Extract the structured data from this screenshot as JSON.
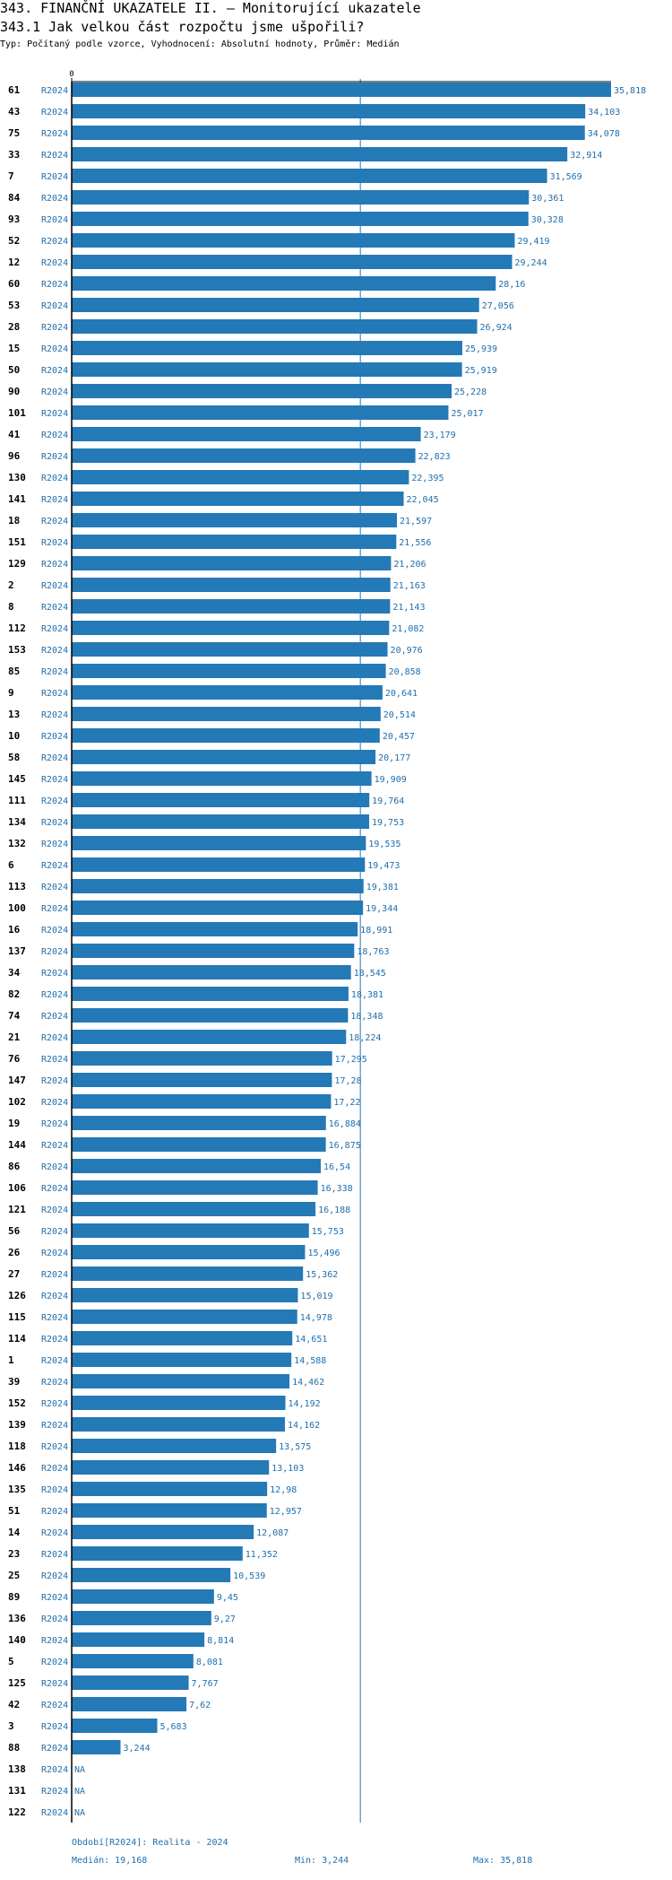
{
  "header": {
    "title1": "343. FINANČNÍ UKAZATELE II. – Monitorující ukazatele",
    "title2": "343.1 Jak velkou část rozpočtu jsme ušpořili?",
    "subtitle": "Typ: Počítaný podle vzorce, Vyhodnocení: Absolutní hodnoty, Průměr: Medián"
  },
  "colors": {
    "bar": "#2479b7",
    "text_accent": "#1f6fad",
    "median_line": "#2479b7"
  },
  "chart_data": {
    "type": "bar",
    "orientation": "horizontal",
    "title": "343.1 Jak velkou část rozpočtu jsme ušpořili?",
    "xlim": [
      0,
      35818
    ],
    "x_tick_label": "0",
    "median": 19168,
    "rows": [
      {
        "id": "61",
        "period": "R2024",
        "value": 35818,
        "label": "35,818"
      },
      {
        "id": "43",
        "period": "R2024",
        "value": 34103,
        "label": "34,103"
      },
      {
        "id": "75",
        "period": "R2024",
        "value": 34078,
        "label": "34,078"
      },
      {
        "id": "33",
        "period": "R2024",
        "value": 32914,
        "label": "32,914"
      },
      {
        "id": "7",
        "period": "R2024",
        "value": 31569,
        "label": "31,569"
      },
      {
        "id": "84",
        "period": "R2024",
        "value": 30361,
        "label": "30,361"
      },
      {
        "id": "93",
        "period": "R2024",
        "value": 30328,
        "label": "30,328"
      },
      {
        "id": "52",
        "period": "R2024",
        "value": 29419,
        "label": "29,419"
      },
      {
        "id": "12",
        "period": "R2024",
        "value": 29244,
        "label": "29,244"
      },
      {
        "id": "60",
        "period": "R2024",
        "value": 28160,
        "label": "28,16"
      },
      {
        "id": "53",
        "period": "R2024",
        "value": 27056,
        "label": "27,056"
      },
      {
        "id": "28",
        "period": "R2024",
        "value": 26924,
        "label": "26,924"
      },
      {
        "id": "15",
        "period": "R2024",
        "value": 25939,
        "label": "25,939"
      },
      {
        "id": "50",
        "period": "R2024",
        "value": 25919,
        "label": "25,919"
      },
      {
        "id": "90",
        "period": "R2024",
        "value": 25228,
        "label": "25,228"
      },
      {
        "id": "101",
        "period": "R2024",
        "value": 25017,
        "label": "25,017"
      },
      {
        "id": "41",
        "period": "R2024",
        "value": 23179,
        "label": "23,179"
      },
      {
        "id": "96",
        "period": "R2024",
        "value": 22823,
        "label": "22,823"
      },
      {
        "id": "130",
        "period": "R2024",
        "value": 22395,
        "label": "22,395"
      },
      {
        "id": "141",
        "period": "R2024",
        "value": 22045,
        "label": "22,045"
      },
      {
        "id": "18",
        "period": "R2024",
        "value": 21597,
        "label": "21,597"
      },
      {
        "id": "151",
        "period": "R2024",
        "value": 21556,
        "label": "21,556"
      },
      {
        "id": "129",
        "period": "R2024",
        "value": 21206,
        "label": "21,206"
      },
      {
        "id": "2",
        "period": "R2024",
        "value": 21163,
        "label": "21,163"
      },
      {
        "id": "8",
        "period": "R2024",
        "value": 21143,
        "label": "21,143"
      },
      {
        "id": "112",
        "period": "R2024",
        "value": 21082,
        "label": "21,082"
      },
      {
        "id": "153",
        "period": "R2024",
        "value": 20976,
        "label": "20,976"
      },
      {
        "id": "85",
        "period": "R2024",
        "value": 20858,
        "label": "20,858"
      },
      {
        "id": "9",
        "period": "R2024",
        "value": 20641,
        "label": "20,641"
      },
      {
        "id": "13",
        "period": "R2024",
        "value": 20514,
        "label": "20,514"
      },
      {
        "id": "10",
        "period": "R2024",
        "value": 20457,
        "label": "20,457"
      },
      {
        "id": "58",
        "period": "R2024",
        "value": 20177,
        "label": "20,177"
      },
      {
        "id": "145",
        "period": "R2024",
        "value": 19909,
        "label": "19,909"
      },
      {
        "id": "111",
        "period": "R2024",
        "value": 19764,
        "label": "19,764"
      },
      {
        "id": "134",
        "period": "R2024",
        "value": 19753,
        "label": "19,753"
      },
      {
        "id": "132",
        "period": "R2024",
        "value": 19535,
        "label": "19,535"
      },
      {
        "id": "6",
        "period": "R2024",
        "value": 19473,
        "label": "19,473"
      },
      {
        "id": "113",
        "period": "R2024",
        "value": 19381,
        "label": "19,381"
      },
      {
        "id": "100",
        "period": "R2024",
        "value": 19344,
        "label": "19,344"
      },
      {
        "id": "16",
        "period": "R2024",
        "value": 18991,
        "label": "18,991"
      },
      {
        "id": "137",
        "period": "R2024",
        "value": 18763,
        "label": "18,763"
      },
      {
        "id": "34",
        "period": "R2024",
        "value": 18545,
        "label": "18,545"
      },
      {
        "id": "82",
        "period": "R2024",
        "value": 18381,
        "label": "18,381"
      },
      {
        "id": "74",
        "period": "R2024",
        "value": 18348,
        "label": "18,348"
      },
      {
        "id": "21",
        "period": "R2024",
        "value": 18224,
        "label": "18,224"
      },
      {
        "id": "76",
        "period": "R2024",
        "value": 17295,
        "label": "17,295"
      },
      {
        "id": "147",
        "period": "R2024",
        "value": 17280,
        "label": "17,28"
      },
      {
        "id": "102",
        "period": "R2024",
        "value": 17220,
        "label": "17,22"
      },
      {
        "id": "19",
        "period": "R2024",
        "value": 16884,
        "label": "16,884"
      },
      {
        "id": "144",
        "period": "R2024",
        "value": 16875,
        "label": "16,875"
      },
      {
        "id": "86",
        "period": "R2024",
        "value": 16540,
        "label": "16,54"
      },
      {
        "id": "106",
        "period": "R2024",
        "value": 16338,
        "label": "16,338"
      },
      {
        "id": "121",
        "period": "R2024",
        "value": 16188,
        "label": "16,188"
      },
      {
        "id": "56",
        "period": "R2024",
        "value": 15753,
        "label": "15,753"
      },
      {
        "id": "26",
        "period": "R2024",
        "value": 15496,
        "label": "15,496"
      },
      {
        "id": "27",
        "period": "R2024",
        "value": 15362,
        "label": "15,362"
      },
      {
        "id": "126",
        "period": "R2024",
        "value": 15019,
        "label": "15,019"
      },
      {
        "id": "115",
        "period": "R2024",
        "value": 14978,
        "label": "14,978"
      },
      {
        "id": "114",
        "period": "R2024",
        "value": 14651,
        "label": "14,651"
      },
      {
        "id": "1",
        "period": "R2024",
        "value": 14588,
        "label": "14,588"
      },
      {
        "id": "39",
        "period": "R2024",
        "value": 14462,
        "label": "14,462"
      },
      {
        "id": "152",
        "period": "R2024",
        "value": 14192,
        "label": "14,192"
      },
      {
        "id": "139",
        "period": "R2024",
        "value": 14162,
        "label": "14,162"
      },
      {
        "id": "118",
        "period": "R2024",
        "value": 13575,
        "label": "13,575"
      },
      {
        "id": "146",
        "period": "R2024",
        "value": 13103,
        "label": "13,103"
      },
      {
        "id": "135",
        "period": "R2024",
        "value": 12980,
        "label": "12,98"
      },
      {
        "id": "51",
        "period": "R2024",
        "value": 12957,
        "label": "12,957"
      },
      {
        "id": "14",
        "period": "R2024",
        "value": 12087,
        "label": "12,087"
      },
      {
        "id": "23",
        "period": "R2024",
        "value": 11352,
        "label": "11,352"
      },
      {
        "id": "25",
        "period": "R2024",
        "value": 10539,
        "label": "10,539"
      },
      {
        "id": "89",
        "period": "R2024",
        "value": 9450,
        "label": "9,45"
      },
      {
        "id": "136",
        "period": "R2024",
        "value": 9270,
        "label": "9,27"
      },
      {
        "id": "140",
        "period": "R2024",
        "value": 8814,
        "label": "8,814"
      },
      {
        "id": "5",
        "period": "R2024",
        "value": 8081,
        "label": "8,081"
      },
      {
        "id": "125",
        "period": "R2024",
        "value": 7767,
        "label": "7,767"
      },
      {
        "id": "42",
        "period": "R2024",
        "value": 7620,
        "label": "7,62"
      },
      {
        "id": "3",
        "period": "R2024",
        "value": 5683,
        "label": "5,683"
      },
      {
        "id": "88",
        "period": "R2024",
        "value": 3244,
        "label": "3,244"
      },
      {
        "id": "138",
        "period": "R2024",
        "value": null,
        "label": "NA"
      },
      {
        "id": "131",
        "period": "R2024",
        "value": null,
        "label": "NA"
      },
      {
        "id": "122",
        "period": "R2024",
        "value": null,
        "label": "NA"
      }
    ]
  },
  "footer": {
    "period_note": "Období[R2024]: Realita - 2024",
    "median_text": "Medián: 19,168",
    "min_text": "Min: 3,244",
    "max_text": "Max: 35,818"
  }
}
